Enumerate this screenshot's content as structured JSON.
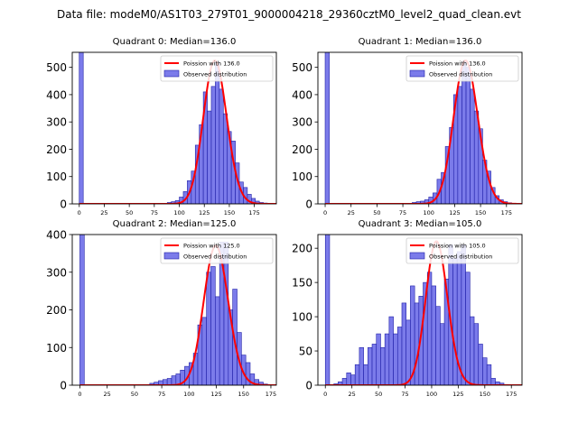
{
  "figure": {
    "suptitle": "Data file: modeM0/AS1T03_279T01_9000004218_29360cztM0_level2_quad_clean.evt"
  },
  "colors": {
    "hist_fill": "#7b7bea",
    "hist_edge": "#1f1fa8",
    "poisson_line": "#ff0000",
    "axes": "#000000"
  },
  "chart_data": [
    {
      "type": "bar",
      "title": "Quadrant 0: Median=136.0",
      "median": 136.0,
      "legend": {
        "position": "top-right",
        "line_label": "Poission with 136.0",
        "bar_label": "Observed distribution"
      },
      "xlim": [
        -7,
        197
      ],
      "ylim": [
        0,
        555
      ],
      "xticks": [
        0,
        25,
        50,
        75,
        100,
        125,
        150,
        175
      ],
      "yticks": [
        0,
        100,
        200,
        300,
        400,
        500
      ],
      "bin_width": 4,
      "zero_bin_value": 555,
      "bins_start": [
        84,
        88,
        92,
        96,
        100,
        104,
        108,
        112,
        116,
        120,
        124,
        128,
        132,
        136,
        140,
        144,
        148,
        152,
        156,
        160,
        164,
        168,
        172,
        176,
        180,
        184,
        188
      ],
      "bins_value": [
        0,
        5,
        8,
        12,
        25,
        45,
        85,
        120,
        215,
        290,
        410,
        340,
        430,
        520,
        420,
        330,
        265,
        230,
        150,
        80,
        60,
        35,
        20,
        10,
        5,
        3,
        1
      ],
      "poisson_peak": 525
    },
    {
      "type": "bar",
      "title": "Quadrant 1: Median=136.0",
      "median": 136.0,
      "legend": {
        "position": "top-right",
        "line_label": "Poission with 136.0",
        "bar_label": "Observed distribution"
      },
      "xlim": [
        -7,
        190
      ],
      "ylim": [
        0,
        555
      ],
      "xticks": [
        0,
        25,
        50,
        75,
        100,
        125,
        150,
        175
      ],
      "yticks": [
        0,
        100,
        200,
        300,
        400,
        500
      ],
      "bin_width": 4,
      "zero_bin_value": 555,
      "bins_start": [
        84,
        88,
        92,
        96,
        100,
        104,
        108,
        112,
        116,
        120,
        124,
        128,
        132,
        136,
        140,
        144,
        148,
        152,
        156,
        160,
        164,
        168,
        172,
        176,
        180
      ],
      "bins_value": [
        5,
        8,
        10,
        15,
        25,
        40,
        90,
        115,
        210,
        280,
        400,
        430,
        520,
        500,
        420,
        340,
        275,
        160,
        120,
        60,
        30,
        15,
        8,
        4,
        1
      ],
      "poisson_peak": 525
    },
    {
      "type": "bar",
      "title": "Quadrant 2: Median=125.0",
      "median": 125.0,
      "legend": {
        "position": "top-right",
        "line_label": "Poission with 125.0",
        "bar_label": "Observed distribution"
      },
      "xlim": [
        -7,
        180
      ],
      "ylim": [
        0,
        400
      ],
      "xticks": [
        0,
        25,
        50,
        75,
        100,
        125,
        150,
        175
      ],
      "yticks": [
        0,
        100,
        200,
        300,
        400
      ],
      "bin_width": 4,
      "zero_bin_value": 400,
      "bins_start": [
        64,
        68,
        72,
        76,
        80,
        84,
        88,
        92,
        96,
        100,
        104,
        108,
        112,
        116,
        120,
        124,
        128,
        132,
        136,
        140,
        144,
        148,
        152,
        156,
        160,
        164,
        168
      ],
      "bins_value": [
        5,
        8,
        12,
        15,
        18,
        25,
        30,
        40,
        50,
        60,
        85,
        160,
        180,
        300,
        315,
        235,
        380,
        380,
        200,
        255,
        140,
        80,
        60,
        30,
        15,
        8,
        3
      ],
      "poisson_peak": 370
    },
    {
      "type": "bar",
      "title": "Quadrant 3: Median=105.0",
      "median": 105.0,
      "legend": {
        "position": "top-right",
        "line_label": "Poission with 105.0",
        "bar_label": "Observed distribution"
      },
      "xlim": [
        -7,
        185
      ],
      "ylim": [
        0,
        220
      ],
      "xticks": [
        0,
        25,
        50,
        75,
        100,
        125,
        150,
        175
      ],
      "yticks": [
        0,
        50,
        100,
        150,
        200
      ],
      "bin_width": 4,
      "zero_bin_value": 220,
      "bins_start": [
        8,
        12,
        16,
        20,
        24,
        28,
        32,
        36,
        40,
        44,
        48,
        52,
        56,
        60,
        64,
        68,
        72,
        76,
        80,
        84,
        88,
        92,
        96,
        100,
        104,
        108,
        112,
        116,
        120,
        124,
        128,
        132,
        136,
        140,
        144,
        148,
        152,
        156,
        160,
        164,
        168
      ],
      "bins_value": [
        2,
        5,
        10,
        18,
        15,
        30,
        55,
        30,
        55,
        60,
        75,
        55,
        75,
        100,
        75,
        85,
        120,
        95,
        145,
        120,
        130,
        150,
        165,
        145,
        115,
        90,
        155,
        205,
        185,
        195,
        205,
        165,
        100,
        90,
        60,
        40,
        30,
        10,
        5,
        3,
        1
      ],
      "poisson_peak": 210
    }
  ]
}
